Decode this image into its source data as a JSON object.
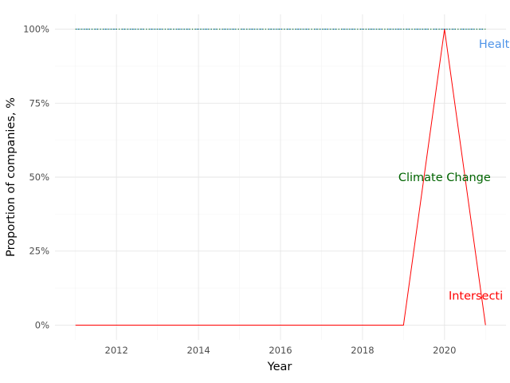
{
  "chart_data": {
    "type": "line",
    "title": "",
    "xlabel": "Year",
    "ylabel": "Proportion of companies, %",
    "xlim": [
      2010.5,
      2021.5
    ],
    "ylim": [
      -0.05,
      1.05
    ],
    "x_ticks": [
      2012,
      2014,
      2016,
      2018,
      2020
    ],
    "x_tick_labels": [
      "2012",
      "2014",
      "2016",
      "2018",
      "2020"
    ],
    "y_ticks": [
      0,
      0.25,
      0.5,
      0.75,
      1.0
    ],
    "y_tick_labels": [
      "0%",
      "25%",
      "50%",
      "75%",
      "100%"
    ],
    "grid": true,
    "legend": "none",
    "series": [
      {
        "name": "Health",
        "color": "#4f94e8",
        "linestyle": "dashdot",
        "x": [
          2011,
          2012,
          2013,
          2014,
          2015,
          2016,
          2017,
          2018,
          2019,
          2020,
          2021
        ],
        "values": [
          1,
          1,
          1,
          1,
          1,
          1,
          1,
          1,
          1,
          1,
          1
        ]
      },
      {
        "name": "Climate Change",
        "color": "#006400",
        "linestyle": "dotted",
        "x": [
          2011,
          2012,
          2013,
          2014,
          2015,
          2016,
          2017,
          2018,
          2019,
          2020,
          2021
        ],
        "values": [
          1,
          1,
          1,
          1,
          1,
          1,
          1,
          1,
          1,
          1,
          1
        ]
      },
      {
        "name": "Intersecti",
        "color": "#ff0000",
        "linestyle": "solid",
        "x": [
          2011,
          2012,
          2013,
          2014,
          2015,
          2016,
          2017,
          2018,
          2019,
          2020,
          2021
        ],
        "values": [
          0,
          0,
          0,
          0,
          0,
          0,
          0,
          0,
          0,
          1,
          0
        ]
      }
    ],
    "annotations": [
      {
        "text": "Health",
        "x": 2021.3,
        "y": 0.95,
        "color": "#4f94e8",
        "anchor": "middle"
      },
      {
        "text": "Climate Change",
        "x": 2020.0,
        "y": 0.5,
        "color": "#006400",
        "anchor": "middle"
      },
      {
        "text": "Intersecti",
        "x": 2020.1,
        "y": 0.1,
        "color": "#ff0000",
        "anchor": "start"
      }
    ]
  }
}
